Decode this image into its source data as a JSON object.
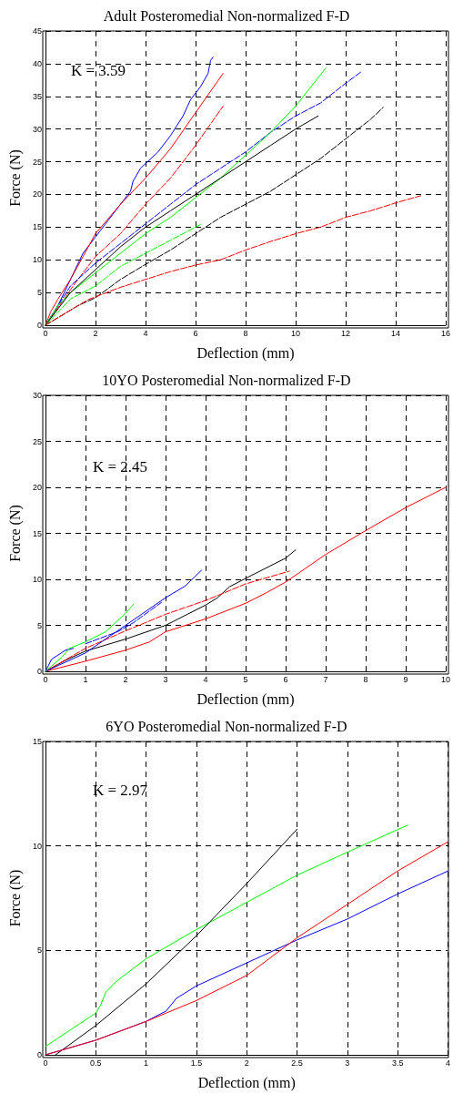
{
  "chart_data": [
    {
      "type": "line",
      "title": "Adult Posteromedial Non-normalized F-D",
      "xlabel": "Deflection (mm)",
      "ylabel": "Force (N)",
      "annotations": [
        "K = 3.59"
      ],
      "xlim": [
        0,
        16
      ],
      "ylim": [
        0,
        45
      ],
      "xticks": [
        0,
        2,
        4,
        6,
        8,
        10,
        12,
        14,
        16
      ],
      "yticks": [
        0,
        5,
        10,
        15,
        20,
        25,
        30,
        35,
        40,
        45
      ],
      "grid": true,
      "marker": "none",
      "series": [
        {
          "color": "#0000ff",
          "line_style": "solid",
          "x": [
            0,
            0.5,
            1,
            1.5,
            2,
            2.5,
            3,
            3.4,
            3.5,
            3.8,
            4.5,
            5,
            5.5,
            5.8,
            6.2,
            6.5,
            6.6,
            6.7
          ],
          "values": [
            0,
            3,
            7,
            11,
            13.5,
            16,
            18.5,
            20.5,
            22,
            24,
            26.5,
            29,
            32,
            34.5,
            36.5,
            38.5,
            40.5,
            41
          ]
        },
        {
          "color": "#ff0000",
          "line_style": "solid",
          "x": [
            0,
            0.2,
            0.5,
            1,
            1.5,
            2,
            3,
            4,
            5,
            6,
            7.1
          ],
          "values": [
            0,
            2,
            4,
            7,
            10.5,
            14,
            18.5,
            22.5,
            27,
            32.5,
            38.5
          ]
        },
        {
          "color": "#ff0000",
          "line_style": "dashed",
          "x": [
            0,
            1.2,
            2,
            3,
            4,
            5,
            6,
            7.1
          ],
          "values": [
            0,
            6.5,
            10.5,
            14,
            18.5,
            22.5,
            27.5,
            33.5
          ]
        },
        {
          "color": "#0000ff",
          "line_style": "dashed",
          "x": [
            0,
            1,
            2,
            3,
            4,
            5,
            6,
            7,
            8,
            9,
            10,
            11,
            12,
            12.6
          ],
          "values": [
            0,
            6,
            9.5,
            12.5,
            15.5,
            18.5,
            21.5,
            24,
            26.5,
            29.5,
            32,
            34,
            37,
            38.7
          ]
        },
        {
          "color": "#00ff00",
          "line_style": "solid",
          "x": [
            0,
            0.5,
            1,
            2,
            3,
            4,
            5,
            6,
            7,
            8,
            9,
            10,
            11.2
          ],
          "values": [
            0,
            3,
            5,
            8,
            11,
            14,
            16.5,
            19.5,
            22.5,
            26,
            29.5,
            33.5,
            39.3
          ]
        },
        {
          "color": "#000000",
          "line_style": "solid",
          "x": [
            0,
            1,
            2,
            3,
            4,
            5,
            6,
            7,
            8,
            9,
            10,
            10.9
          ],
          "values": [
            0,
            5,
            8.5,
            12,
            15,
            17.5,
            20,
            22.5,
            25,
            27.5,
            30,
            32
          ]
        },
        {
          "color": "#00ff00",
          "line_style": "dashed",
          "x": [
            0,
            1,
            2,
            3,
            4,
            5,
            6.2
          ],
          "values": [
            0,
            4,
            6,
            9,
            11,
            13,
            15.4
          ]
        },
        {
          "color": "#000000",
          "line_style": "dashed",
          "x": [
            0,
            1.3,
            2,
            3,
            4,
            5,
            6,
            7,
            8,
            9,
            10,
            11,
            12,
            13,
            13.5
          ],
          "values": [
            0,
            3,
            4.2,
            7,
            9.3,
            11.5,
            14,
            16.5,
            18.5,
            20.5,
            23,
            25.5,
            28.5,
            31.5,
            33.3
          ]
        },
        {
          "color": "#ff0000",
          "line_style": "dashed",
          "x": [
            0,
            1.7,
            3,
            4,
            5,
            6,
            7,
            8,
            9,
            10,
            11,
            12,
            13,
            14,
            15
          ],
          "values": [
            0,
            3.9,
            5.8,
            7,
            8.2,
            9.2,
            10,
            11.5,
            12.8,
            14,
            15,
            16.5,
            17.5,
            18.7,
            19.8
          ]
        }
      ]
    },
    {
      "type": "line",
      "title": "10YO Posteromedial Non-normalized F-D",
      "xlabel": "Deflection (mm)",
      "ylabel": "Force (N)",
      "annotations": [
        "K = 2.45"
      ],
      "xlim": [
        0,
        10
      ],
      "ylim": [
        0,
        30
      ],
      "xticks": [
        0,
        1,
        2,
        3,
        4,
        5,
        6,
        7,
        8,
        9,
        10
      ],
      "yticks": [
        0,
        5,
        10,
        15,
        20,
        25,
        30
      ],
      "grid": true,
      "marker": "none",
      "series": [
        {
          "color": "#ff0000",
          "line_style": "solid",
          "x": [
            0,
            1,
            2,
            2.6,
            3,
            4,
            5,
            5.5,
            6,
            7,
            8,
            9,
            10
          ],
          "values": [
            0,
            1.1,
            2.3,
            3.2,
            4.3,
            5.7,
            7.4,
            8.5,
            9.7,
            12.7,
            15.3,
            17.8,
            20
          ]
        },
        {
          "color": "#000000",
          "line_style": "solid",
          "x": [
            0,
            0.5,
            1,
            2,
            3,
            4,
            4.3,
            4.6,
            5,
            6,
            6.25
          ],
          "values": [
            0,
            1.2,
            2.2,
            3.5,
            5,
            7.2,
            8,
            9.2,
            10.1,
            12.3,
            13.2
          ]
        },
        {
          "color": "#ff0000",
          "line_style": "dashed",
          "x": [
            0,
            1,
            2,
            3,
            4,
            5,
            6.1
          ],
          "values": [
            0,
            2.5,
            4.4,
            6.2,
            7.7,
            9.5,
            10.9
          ]
        },
        {
          "color": "#0000ff",
          "line_style": "solid",
          "x": [
            0,
            0.15,
            0.5,
            0.7
          ],
          "values": [
            0,
            1.3,
            2.3,
            2.5
          ]
        },
        {
          "color": "#0000ff",
          "line_style": "solid",
          "x": [
            0,
            0.5,
            1,
            1.5,
            2,
            2.5,
            3,
            3.5,
            3.9
          ],
          "values": [
            0,
            1,
            2,
            3.5,
            5,
            6.5,
            8,
            9.3,
            11
          ]
        },
        {
          "color": "#0000ff",
          "line_style": "dashed",
          "x": [
            1,
            1.8,
            2.2,
            2.9
          ],
          "values": [
            3,
            4.3,
            5.3,
            7.5
          ]
        },
        {
          "color": "#00ff00",
          "line_style": "solid",
          "x": [
            0,
            0.4,
            0.6,
            1,
            1.5,
            2,
            2.2
          ],
          "values": [
            0,
            1.5,
            2.5,
            3.2,
            4.3,
            6.3,
            7.3
          ]
        }
      ]
    },
    {
      "type": "line",
      "title": "6YO Posteromedial Non-normalized F-D",
      "xlabel": "Deflection (mm)",
      "ylabel": "Force (N)",
      "annotations": [
        "K = 2.97"
      ],
      "xlim": [
        0,
        4
      ],
      "ylim": [
        0,
        15
      ],
      "xticks": [
        0,
        0.5,
        1,
        1.5,
        2,
        2.5,
        3,
        3.5,
        4
      ],
      "yticks": [
        0,
        5,
        10,
        15
      ],
      "grid": true,
      "marker": "none",
      "series": [
        {
          "color": "#00ff00",
          "line_style": "solid",
          "x": [
            0,
            0.25,
            0.5,
            0.55,
            0.6,
            0.7,
            1,
            1.5,
            2,
            2.5,
            3,
            3.6
          ],
          "values": [
            0.4,
            1.2,
            2,
            2.4,
            3,
            3.5,
            4.6,
            6,
            7.3,
            8.6,
            9.7,
            11
          ]
        },
        {
          "color": "#000000",
          "line_style": "solid",
          "x": [
            0.1,
            0.5,
            1,
            1.5,
            2,
            2.5
          ],
          "values": [
            0,
            1.4,
            3.4,
            5.7,
            8.2,
            10.8
          ]
        },
        {
          "color": "#0000ff",
          "line_style": "solid",
          "x": [
            0,
            0.5,
            1,
            1.2,
            1.3,
            1.5,
            2,
            2.5,
            3,
            3.5,
            4
          ],
          "values": [
            0,
            0.7,
            1.6,
            2.1,
            2.7,
            3.3,
            4.4,
            5.5,
            6.5,
            7.7,
            8.8
          ]
        },
        {
          "color": "#ff0000",
          "line_style": "solid",
          "x": [
            0,
            0.5,
            1,
            1.5,
            2,
            2.5,
            3,
            3.5,
            4
          ],
          "values": [
            0,
            0.7,
            1.6,
            2.6,
            3.8,
            5.6,
            7.2,
            8.8,
            10.2
          ]
        }
      ]
    }
  ]
}
